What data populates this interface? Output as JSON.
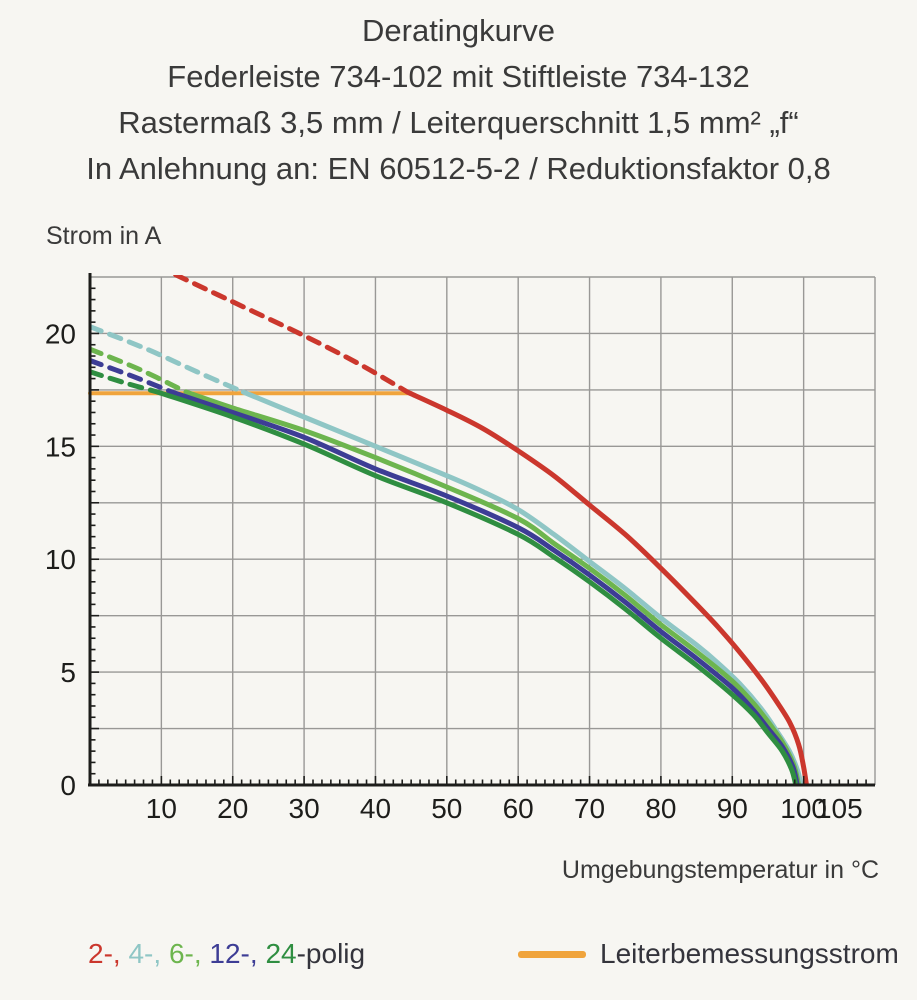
{
  "title": {
    "line1": "Deratingkurve",
    "line2": "Federleiste 734-102 mit Stiftleiste 734-132",
    "line3": "Rastermaß 3,5 mm / Leiterquerschnitt 1,5 mm² „f“",
    "line4": "In Anlehnung an: EN 60512-5-2 / Reduktionsfaktor 0,8"
  },
  "colors": {
    "background": "#f7f6f2",
    "grid": "#999896",
    "axis": "#1d1d1b",
    "tick_text": "#1d1d1b",
    "dark_text": "#34343c",
    "rated_orange": "#f0a43c",
    "pole_2": "#cb372d",
    "pole_4": "#8fc6c5",
    "pole_6": "#6db54e",
    "pole_12": "#3d3d95",
    "pole_24": "#2f8e41"
  },
  "chart_data": {
    "type": "line",
    "title": "Deratingkurve",
    "xlabel": "Umgebungstemperatur in °C",
    "ylabel": "Strom in A",
    "xlim": [
      0,
      110
    ],
    "ylim": [
      0,
      22.5
    ],
    "grid": "on",
    "x_gridline_step": 10,
    "y_gridline_step": 2.5,
    "x_minor_tick_step": 1.25,
    "y_minor_tick_step": 0.5,
    "x_tick_labels": [
      10,
      20,
      30,
      40,
      50,
      60,
      70,
      80,
      90,
      100,
      105
    ],
    "y_tick_labels": [
      0,
      5,
      10,
      15,
      20
    ],
    "rated_current_line": {
      "label": "Leiterbemessungsstrom",
      "value": 17.35,
      "x_start": 0,
      "x_end": 45,
      "color": "#f0a43c"
    },
    "series": [
      {
        "name": "2-polig",
        "color": "#cb372d",
        "dashed": [
          [
            12,
            22.6
          ],
          [
            20,
            21.4
          ],
          [
            30,
            19.9
          ],
          [
            38,
            18.6
          ],
          [
            44.5,
            17.4
          ]
        ],
        "solid": [
          [
            44.5,
            17.4
          ],
          [
            50,
            16.6
          ],
          [
            55,
            15.8
          ],
          [
            60,
            14.8
          ],
          [
            65,
            13.7
          ],
          [
            70,
            12.4
          ],
          [
            75,
            11.1
          ],
          [
            80,
            9.6
          ],
          [
            85,
            8.0
          ],
          [
            88,
            7.0
          ],
          [
            91,
            5.9
          ],
          [
            94,
            4.7
          ],
          [
            96,
            3.8
          ],
          [
            98,
            2.8
          ],
          [
            99.3,
            1.8
          ],
          [
            100,
            0.8
          ],
          [
            100.4,
            0
          ]
        ]
      },
      {
        "name": "4-polig",
        "color": "#8fc6c5",
        "dashed": [
          [
            0,
            20.3
          ],
          [
            8,
            19.3
          ],
          [
            15,
            18.3
          ],
          [
            21.5,
            17.4
          ]
        ],
        "solid": [
          [
            21.5,
            17.4
          ],
          [
            30,
            16.3
          ],
          [
            40,
            15.0
          ],
          [
            50,
            13.7
          ],
          [
            55,
            13.0
          ],
          [
            60,
            12.2
          ],
          [
            65,
            11.1
          ],
          [
            70,
            9.9
          ],
          [
            75,
            8.7
          ],
          [
            80,
            7.4
          ],
          [
            85,
            6.2
          ],
          [
            88,
            5.4
          ],
          [
            91,
            4.5
          ],
          [
            94,
            3.4
          ],
          [
            96,
            2.5
          ],
          [
            98,
            1.5
          ],
          [
            99.2,
            0.6
          ],
          [
            99.6,
            0
          ]
        ]
      },
      {
        "name": "6-polig",
        "color": "#6db54e",
        "dashed": [
          [
            0,
            19.3
          ],
          [
            7,
            18.4
          ],
          [
            13.5,
            17.4
          ]
        ],
        "solid": [
          [
            13.5,
            17.4
          ],
          [
            20,
            16.7
          ],
          [
            30,
            15.7
          ],
          [
            40,
            14.5
          ],
          [
            50,
            13.2
          ],
          [
            60,
            11.8
          ],
          [
            65,
            10.7
          ],
          [
            70,
            9.6
          ],
          [
            75,
            8.4
          ],
          [
            80,
            7.1
          ],
          [
            85,
            5.9
          ],
          [
            90,
            4.6
          ],
          [
            93,
            3.6
          ],
          [
            95,
            2.8
          ],
          [
            97,
            1.9
          ],
          [
            98.6,
            0.9
          ],
          [
            99.3,
            0
          ]
        ]
      },
      {
        "name": "12-polig",
        "color": "#3d3d95",
        "dashed": [
          [
            0,
            18.8
          ],
          [
            6,
            18.1
          ],
          [
            11.5,
            17.4
          ]
        ],
        "solid": [
          [
            11.5,
            17.4
          ],
          [
            20,
            16.5
          ],
          [
            30,
            15.4
          ],
          [
            40,
            14.0
          ],
          [
            50,
            12.8
          ],
          [
            60,
            11.4
          ],
          [
            65,
            10.4
          ],
          [
            70,
            9.3
          ],
          [
            75,
            8.1
          ],
          [
            80,
            6.8
          ],
          [
            85,
            5.6
          ],
          [
            90,
            4.3
          ],
          [
            93,
            3.3
          ],
          [
            95,
            2.5
          ],
          [
            97,
            1.7
          ],
          [
            98.5,
            0.8
          ],
          [
            99.1,
            0
          ]
        ]
      },
      {
        "name": "24-polig",
        "color": "#2f8e41",
        "dashed": [
          [
            0,
            18.3
          ],
          [
            5,
            17.8
          ],
          [
            9.5,
            17.4
          ]
        ],
        "solid": [
          [
            9.5,
            17.4
          ],
          [
            20,
            16.3
          ],
          [
            30,
            15.1
          ],
          [
            40,
            13.7
          ],
          [
            50,
            12.5
          ],
          [
            60,
            11.1
          ],
          [
            65,
            10.1
          ],
          [
            70,
            9.0
          ],
          [
            75,
            7.8
          ],
          [
            80,
            6.5
          ],
          [
            85,
            5.3
          ],
          [
            90,
            4.0
          ],
          [
            93,
            3.1
          ],
          [
            95,
            2.3
          ],
          [
            97,
            1.5
          ],
          [
            98.3,
            0.7
          ],
          [
            98.9,
            0
          ]
        ]
      }
    ],
    "legend_position": "bottom"
  },
  "legend": {
    "poles_segments": [
      {
        "text": "2-, ",
        "color": "#cb372d"
      },
      {
        "text": "4-, ",
        "color": "#8fc6c5"
      },
      {
        "text": "6-, ",
        "color": "#6db54e"
      },
      {
        "text": "12-, ",
        "color": "#3d3d95"
      },
      {
        "text": "24",
        "color": "#2f8e41"
      },
      {
        "text": "-polig",
        "color": "#34343c"
      }
    ],
    "rated_label": "Leiterbemessungsstrom"
  }
}
